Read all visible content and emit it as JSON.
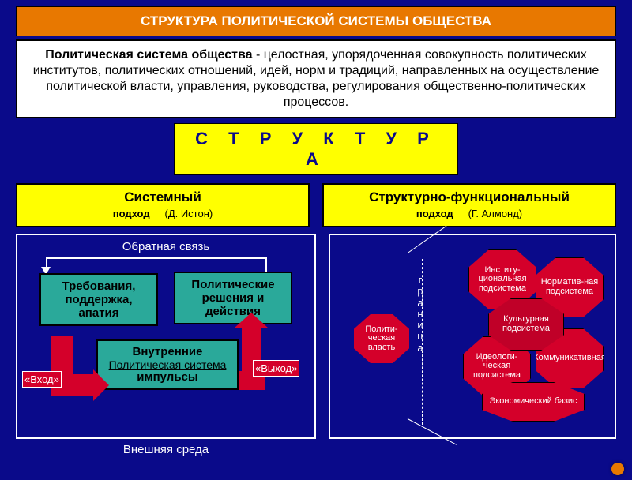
{
  "title": "СТРУКТУРА ПОЛИТИЧЕСКОЙ СИСТЕМЫ ОБЩЕСТВА",
  "definition_bold": "Политическая система общества",
  "definition_rest": " - целостная, упорядоченная совокупность политических институтов, политических отношений, идей, норм и традиций, направленных на осуществление политической власти, управления, руководства, регулирования общественно-политических процессов.",
  "structure_label": "С Т Р У К Т У Р А",
  "approaches": {
    "left_main": "Системный",
    "left_sub1": "подход",
    "left_sub2": "(Д. Истон)",
    "right_main": "Структурно-функциональный",
    "right_sub1": "подход",
    "right_sub2": "(Г. Алмонд)"
  },
  "left": {
    "feedback": "Обратная связь",
    "demands": "Требования, поддержка, апатия",
    "decisions": "Политические решения и действия",
    "system_top": "Внутренние",
    "system_mid": "Политическая система",
    "system_bot": "импульсы",
    "input": "«Вход»",
    "output": "«Выход»",
    "environment": "Внешняя среда"
  },
  "right": {
    "power": "Полити-ческая власть",
    "boundary": "граница",
    "sub1": "Институ-циональная подсистема",
    "sub2": "Норматив-ная подсистема",
    "sub3": "Культурная подсистема",
    "sub4": "Идеологи-ческая подсистема",
    "sub5": "Коммуникативная",
    "sub6": "Экономический базис"
  },
  "colors": {
    "bg": "#0a0a8a",
    "orange": "#e87800",
    "yellow": "#ffff00",
    "teal": "#2aa99a",
    "red": "#d4002a"
  }
}
